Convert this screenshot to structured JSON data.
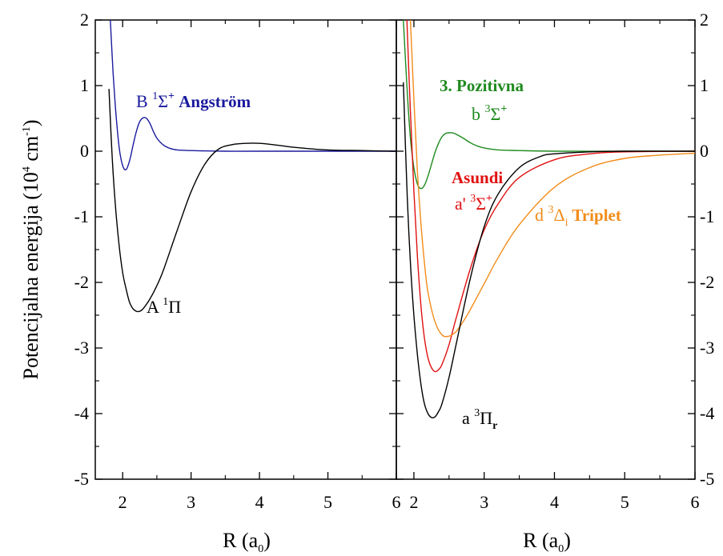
{
  "chart_data": [
    {
      "type": "line",
      "panel": "left",
      "xlabel": "R (a",
      "xlabel_sub": "0",
      "xlabel_close": ")",
      "ylabel": "Potencijalna energija (10",
      "ylabel_sup1": "4",
      "ylabel_mid": " cm",
      "ylabel_sup2": "-1",
      "ylabel_close": ")",
      "xlim": [
        1.6,
        6
      ],
      "ylim": [
        -5,
        2
      ],
      "xticks": [
        "2",
        "3",
        "4",
        "5",
        "6"
      ],
      "yticks": [
        "2",
        "1",
        "0",
        "-1",
        "-2",
        "-3",
        "-4",
        "-5"
      ],
      "series": [
        {
          "name": "B 1Σ+ Angström",
          "color": "#1a1a9e",
          "x": [
            1.82,
            1.86,
            1.9,
            1.95,
            2.0,
            2.05,
            2.1,
            2.15,
            2.2,
            2.25,
            2.3,
            2.35,
            2.4,
            2.45,
            2.5,
            2.6,
            2.7,
            2.8,
            3.0,
            3.5,
            4.0,
            5.0,
            6.0
          ],
          "y": [
            2.0,
            1.2,
            0.6,
            0.05,
            -0.22,
            -0.28,
            -0.15,
            0.08,
            0.3,
            0.45,
            0.51,
            0.5,
            0.42,
            0.3,
            0.2,
            0.09,
            0.04,
            0.02,
            0.01,
            0.0,
            0.0,
            0.0,
            0.0
          ]
        },
        {
          "name": "A 1Π",
          "color": "#000000",
          "x": [
            1.8,
            1.85,
            1.9,
            1.95,
            2.0,
            2.05,
            2.1,
            2.15,
            2.2,
            2.25,
            2.3,
            2.4,
            2.5,
            2.6,
            2.8,
            3.0,
            3.2,
            3.4,
            3.6,
            3.8,
            4.0,
            4.2,
            4.5,
            5.0,
            5.5,
            6.0
          ],
          "y": [
            0.95,
            -0.15,
            -0.9,
            -1.45,
            -1.85,
            -2.1,
            -2.3,
            -2.4,
            -2.44,
            -2.44,
            -2.4,
            -2.25,
            -2.05,
            -1.8,
            -1.2,
            -0.62,
            -0.2,
            0.03,
            0.1,
            0.12,
            0.12,
            0.1,
            0.06,
            0.02,
            0.01,
            0.0
          ]
        }
      ],
      "annotations": [
        {
          "prefix": "B ",
          "sup": "1",
          "main": "Σ",
          "sup2": "+",
          "bold": " Angström",
          "color": "#1a1a9e"
        },
        {
          "prefix": "A ",
          "sup": "1",
          "main": "Π",
          "color": "#000000"
        }
      ]
    },
    {
      "type": "line",
      "panel": "right",
      "xlabel": "R (a",
      "xlabel_sub": "0",
      "xlabel_close": ")",
      "xlim": [
        1.75,
        6
      ],
      "ylim": [
        -5,
        2
      ],
      "xticks": [
        "2",
        "3",
        "4",
        "5",
        "6"
      ],
      "yticks": [
        "2",
        "1",
        "0",
        "-1",
        "-2",
        "-3",
        "-4",
        "-5"
      ],
      "series": [
        {
          "name": "3. Pozitivna b 3Σ+",
          "color": "#1e8a1e",
          "x": [
            1.85,
            1.9,
            1.95,
            2.0,
            2.05,
            2.1,
            2.15,
            2.2,
            2.25,
            2.3,
            2.35,
            2.4,
            2.45,
            2.5,
            2.55,
            2.6,
            2.7,
            2.8,
            2.9,
            3.0,
            3.2,
            3.5,
            4.0,
            5.0,
            6.0
          ],
          "y": [
            2.0,
            1.0,
            0.2,
            -0.25,
            -0.5,
            -0.57,
            -0.52,
            -0.38,
            -0.2,
            -0.02,
            0.12,
            0.22,
            0.27,
            0.28,
            0.28,
            0.26,
            0.2,
            0.13,
            0.08,
            0.05,
            0.02,
            0.01,
            0.0,
            0.0,
            0.0
          ]
        },
        {
          "name": "Asundi a' 3Σ+",
          "color": "#e01010",
          "x": [
            1.9,
            1.95,
            2.0,
            2.05,
            2.1,
            2.15,
            2.2,
            2.25,
            2.3,
            2.35,
            2.4,
            2.5,
            2.6,
            2.8,
            3.0,
            3.2,
            3.5,
            4.0,
            4.5,
            5.0,
            6.0
          ],
          "y": [
            2.0,
            0.6,
            -0.6,
            -1.6,
            -2.35,
            -2.85,
            -3.15,
            -3.3,
            -3.36,
            -3.33,
            -3.25,
            -2.95,
            -2.55,
            -1.8,
            -1.2,
            -0.8,
            -0.4,
            -0.13,
            -0.04,
            -0.01,
            0.0
          ]
        },
        {
          "name": "Triplet d 3Δi",
          "color": "#f28c1a",
          "x": [
            1.95,
            2.0,
            2.05,
            2.1,
            2.15,
            2.2,
            2.3,
            2.4,
            2.5,
            2.6,
            2.7,
            2.8,
            3.0,
            3.2,
            3.5,
            4.0,
            4.5,
            5.0,
            5.5,
            6.0
          ],
          "y": [
            2.0,
            0.8,
            -0.3,
            -1.1,
            -1.7,
            -2.15,
            -2.6,
            -2.8,
            -2.82,
            -2.75,
            -2.6,
            -2.42,
            -2.02,
            -1.62,
            -1.12,
            -0.55,
            -0.25,
            -0.11,
            -0.06,
            -0.03
          ]
        },
        {
          "name": "a 3Πr",
          "color": "#000000",
          "x": [
            1.85,
            1.9,
            1.95,
            2.0,
            2.05,
            2.1,
            2.15,
            2.2,
            2.25,
            2.3,
            2.35,
            2.4,
            2.5,
            2.6,
            2.8,
            3.0,
            3.2,
            3.5,
            3.8,
            4.0,
            4.5,
            5.0,
            6.0
          ],
          "y": [
            1.05,
            -0.55,
            -1.7,
            -2.5,
            -3.1,
            -3.55,
            -3.85,
            -4.0,
            -4.06,
            -4.05,
            -3.97,
            -3.85,
            -3.45,
            -2.95,
            -1.95,
            -1.15,
            -0.65,
            -0.25,
            -0.08,
            -0.04,
            -0.01,
            0.0,
            0.0
          ]
        }
      ],
      "annotations": [
        {
          "bold": "3. Pozitivna",
          "color": "#1e8a1e"
        },
        {
          "prefix": "b ",
          "sup": "3",
          "main": "Σ",
          "sup2": "+",
          "color": "#1e8a1e"
        },
        {
          "bold": "Asundi",
          "color": "#e01010"
        },
        {
          "prefix": "a' ",
          "sup": "3",
          "main": "Σ",
          "sup2": "+",
          "color": "#e01010"
        },
        {
          "prefix": "d ",
          "sup": "3",
          "main": "Δ",
          "sub": "i",
          "bold": "  Triplet",
          "color": "#f28c1a"
        },
        {
          "prefix": "a ",
          "sup": "3",
          "main": "Π",
          "sub": "r",
          "color": "#000000"
        }
      ]
    }
  ]
}
